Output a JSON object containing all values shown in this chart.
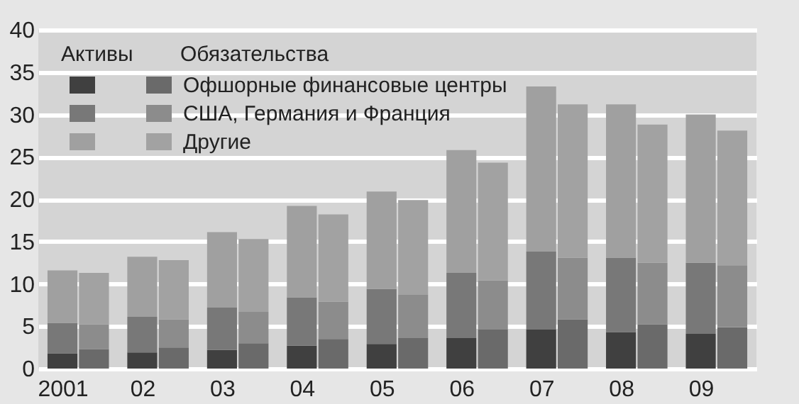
{
  "chart_data": {
    "type": "bar",
    "stacked": true,
    "categories": [
      "2001",
      null,
      "02",
      null,
      "03",
      null,
      "04",
      null,
      "05",
      null,
      "06",
      null,
      "07",
      null,
      "08",
      null,
      "09",
      null
    ],
    "series": [
      {
        "name": "Офшорные финансовые центры",
        "color": "#6a6a6a",
        "colors": [
          "#404040",
          "#6a6a6a",
          "#404040",
          "#6a6a6a",
          "#404040",
          "#6a6a6a",
          "#404040",
          "#6a6a6a",
          "#404040",
          "#6a6a6a",
          "#404040",
          "#6a6a6a",
          "#404040",
          "#6a6a6a",
          "#404040",
          "#6a6a6a",
          "#404040",
          "#6a6a6a"
        ],
        "values": [
          1.8,
          2.3,
          1.9,
          2.5,
          2.2,
          3.0,
          2.7,
          3.5,
          2.9,
          3.6,
          3.6,
          4.6,
          4.6,
          5.8,
          4.3,
          5.2,
          4.1,
          4.9
        ]
      },
      {
        "name": "США, Германия и Франция",
        "color": "#8c8c8c",
        "colors": [
          "#787878",
          "#8c8c8c",
          "#787878",
          "#8c8c8c",
          "#787878",
          "#8c8c8c",
          "#787878",
          "#8c8c8c",
          "#787878",
          "#8c8c8c",
          "#787878",
          "#8c8c8c",
          "#787878",
          "#8c8c8c",
          "#787878",
          "#8c8c8c",
          "#787878",
          "#8c8c8c"
        ],
        "values": [
          3.6,
          2.9,
          4.2,
          3.3,
          5.0,
          3.7,
          5.7,
          4.4,
          6.5,
          5.1,
          7.7,
          5.8,
          9.2,
          7.3,
          8.8,
          7.3,
          8.4,
          7.3
        ]
      },
      {
        "name": "Другие",
        "color": "#a2a2a2",
        "colors": [
          "#a0a0a0",
          "#a2a2a2",
          "#a0a0a0",
          "#a2a2a2",
          "#a0a0a0",
          "#a2a2a2",
          "#a0a0a0",
          "#a2a2a2",
          "#a0a0a0",
          "#a2a2a2",
          "#a0a0a0",
          "#a2a2a2",
          "#a0a0a0",
          "#a2a2a2",
          "#a0a0a0",
          "#a2a2a2",
          "#a0a0a0",
          "#a2a2a2"
        ],
        "values": [
          6.2,
          6.1,
          7.1,
          7.0,
          8.9,
          8.6,
          10.8,
          10.3,
          11.5,
          11.2,
          14.5,
          13.9,
          19.5,
          18.1,
          18.1,
          16.3,
          17.5,
          15.9
        ]
      }
    ],
    "annotations": [
      "Активы",
      "Обязательства"
    ],
    "ylim": [
      0,
      40
    ],
    "yticks": [
      0,
      5,
      10,
      15,
      20,
      25,
      30,
      35,
      40
    ],
    "grid": "y",
    "legend": "top left"
  }
}
